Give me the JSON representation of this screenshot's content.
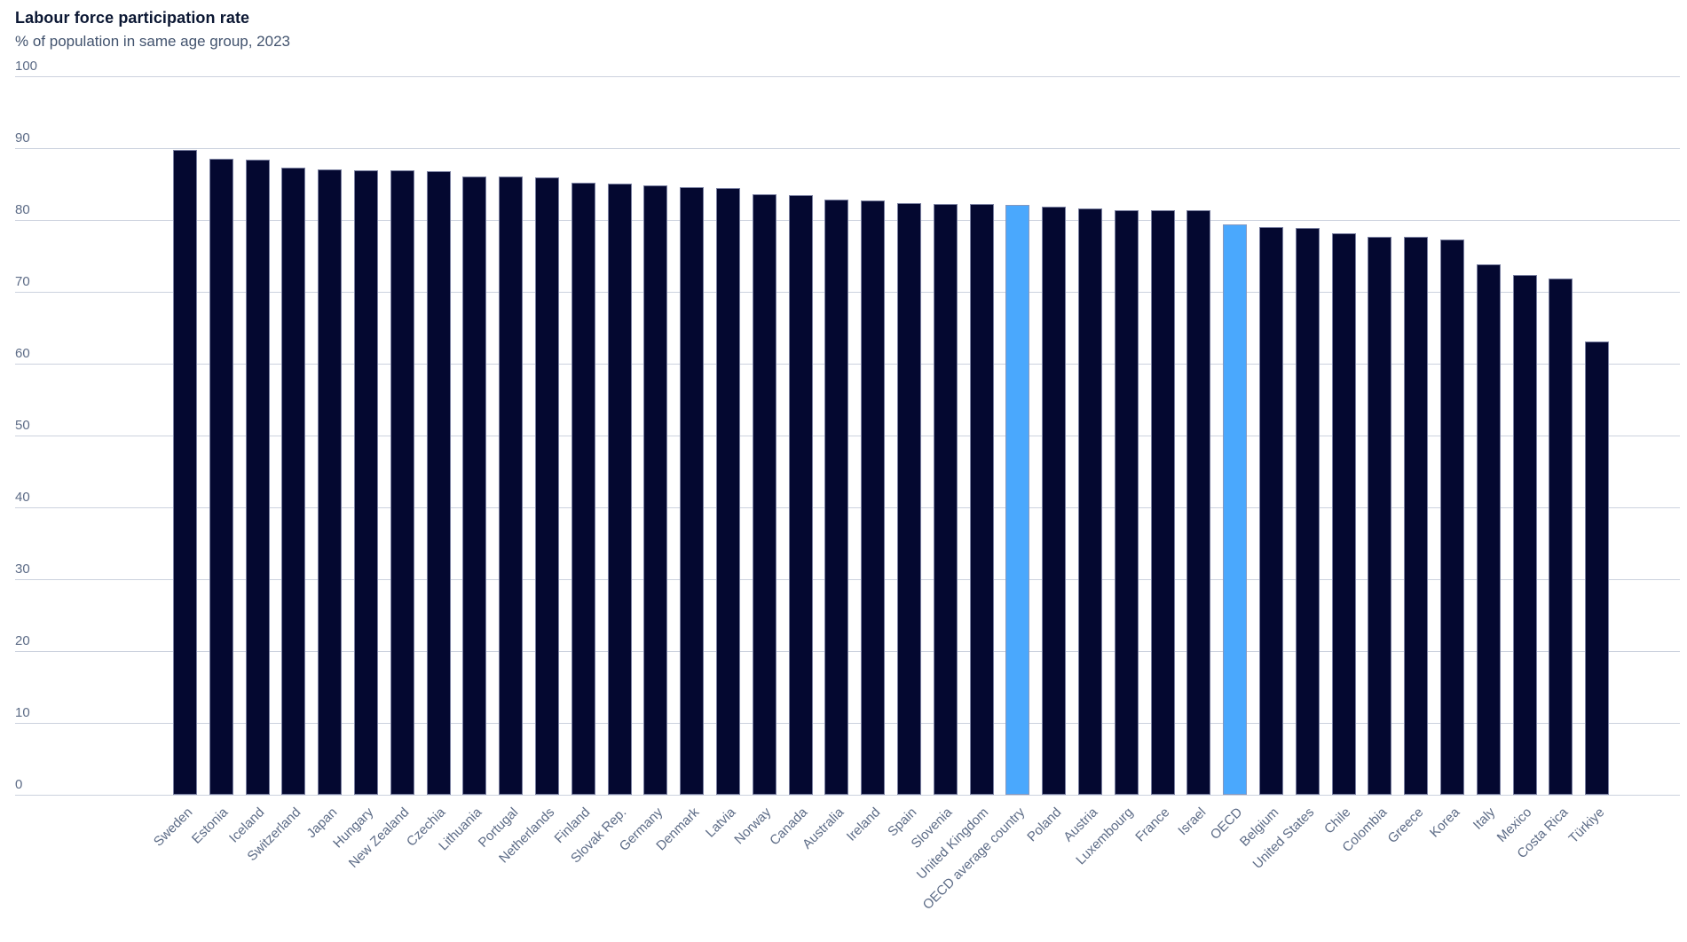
{
  "header": {
    "title": "Labour force participation rate",
    "subtitle": "% of population in same age group, 2023"
  },
  "colors": {
    "background": "#ffffff",
    "bar": "#040830",
    "highlight": "#4aa8fd",
    "bar_border": "#8f95b5",
    "gridline": "#ccd2de",
    "axis_text": "#5c6b86",
    "title_text": "#0b1733",
    "subtitle_text": "#42536e"
  },
  "chart_data": {
    "type": "bar",
    "title": "Labour force participation rate",
    "subtitle": "% of population in same age group, 2023",
    "ylim": [
      0,
      100
    ],
    "ytick_step": 10,
    "grid": true,
    "legend_position": "none",
    "bar_color": "#040830",
    "highlight_color": "#4aa8fd",
    "highlighted": [
      "OECD average country",
      "OECD"
    ],
    "categories": [
      "Sweden",
      "Estonia",
      "Iceland",
      "Switzerland",
      "Japan",
      "Hungary",
      "New Zealand",
      "Czechia",
      "Lithuania",
      "Portugal",
      "Netherlands",
      "Finland",
      "Slovak Rep.",
      "Germany",
      "Denmark",
      "Latvia",
      "Norway",
      "Canada",
      "Australia",
      "Ireland",
      "Spain",
      "Slovenia",
      "United Kingdom",
      "OECD average country",
      "Poland",
      "Austria",
      "Luxembourg",
      "France",
      "Israel",
      "OECD",
      "Belgium",
      "United States",
      "Chile",
      "Colombia",
      "Greece",
      "Korea",
      "Italy",
      "Mexico",
      "Costa Rica",
      "Türkiye"
    ],
    "values": [
      89.8,
      88.5,
      88.4,
      87.3,
      87.0,
      86.9,
      86.9,
      86.8,
      86.1,
      86.0,
      85.9,
      85.2,
      85.1,
      84.8,
      84.6,
      84.5,
      83.6,
      83.5,
      82.8,
      82.7,
      82.4,
      82.2,
      82.2,
      82.1,
      81.8,
      81.6,
      81.4,
      81.4,
      81.3,
      79.4,
      79.0,
      78.9,
      78.1,
      77.7,
      77.6,
      77.3,
      73.8,
      72.4,
      71.8,
      63.1
    ]
  }
}
